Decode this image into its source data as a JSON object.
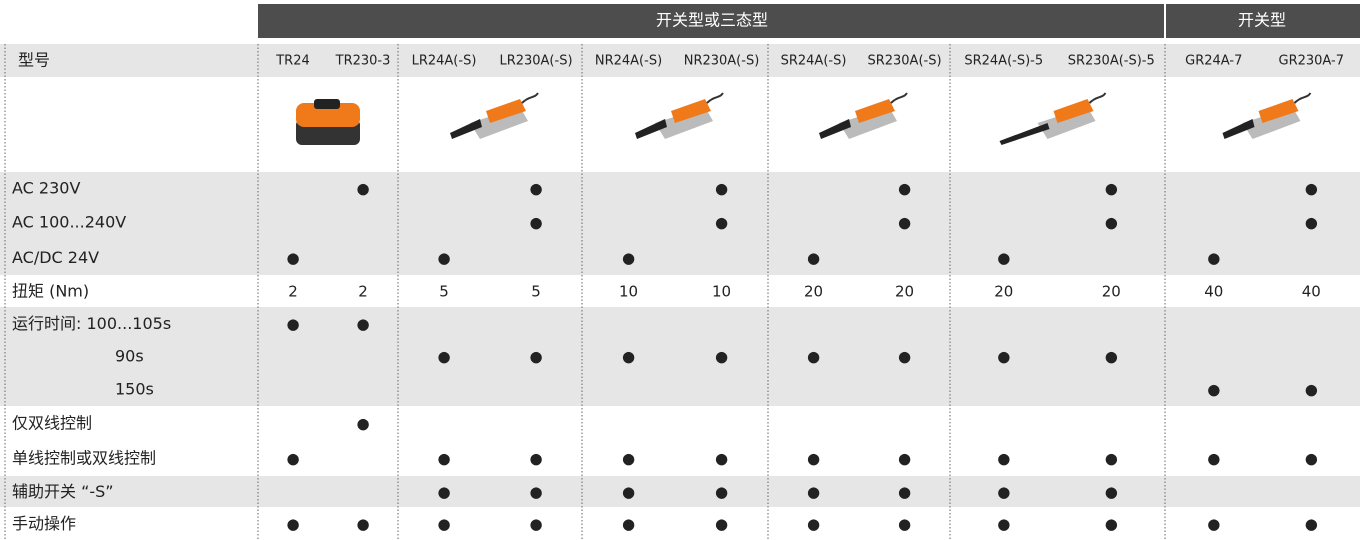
{
  "header": {
    "groups": [
      "开关型或三态型",
      "开关型"
    ]
  },
  "table": {
    "model_label": "型号",
    "models": [
      "TR24",
      "TR230-3",
      "LR24A(-S)",
      "LR230A(-S)",
      "NR24A(-S)",
      "NR230A(-S)",
      "SR24A(-S)",
      "SR230A(-S)",
      "SR24A(-S)-5",
      "SR230A(-S)-5",
      "GR24A-7",
      "GR230A-7"
    ],
    "bands": [
      {
        "rows": [
          {
            "label": "AC 230V",
            "cells": [
              null,
              "●",
              null,
              "●",
              null,
              "●",
              null,
              "●",
              null,
              "●",
              null,
              "●"
            ]
          },
          {
            "label": "AC 100...240V",
            "cells": [
              null,
              null,
              null,
              "●",
              null,
              "●",
              null,
              "●",
              null,
              "●",
              null,
              "●"
            ]
          },
          {
            "label": "AC/DC 24V",
            "cells": [
              "●",
              null,
              "●",
              null,
              "●",
              null,
              "●",
              null,
              "●",
              null,
              "●",
              null
            ]
          }
        ]
      },
      {
        "rows": [
          {
            "label": "扭矩 (Nm)",
            "cells": [
              2,
              2,
              5,
              5,
              10,
              10,
              20,
              20,
              20,
              20,
              40,
              40
            ]
          }
        ]
      },
      {
        "rows": [
          {
            "label": "运行时间: 100...105s",
            "cells": [
              "●",
              "●",
              null,
              null,
              null,
              null,
              null,
              null,
              null,
              null,
              null,
              null
            ]
          },
          {
            "label": "90s",
            "cells": [
              null,
              null,
              "●",
              "●",
              "●",
              "●",
              "●",
              "●",
              "●",
              "●",
              null,
              null
            ]
          },
          {
            "label": "150s",
            "cells": [
              null,
              null,
              null,
              null,
              null,
              null,
              null,
              null,
              null,
              null,
              "●",
              "●"
            ]
          }
        ]
      },
      {
        "rows": [
          {
            "label": "仅双线控制",
            "cells": [
              null,
              "●",
              null,
              null,
              null,
              null,
              null,
              null,
              null,
              null,
              null,
              null
            ]
          },
          {
            "label": "单线控制或双线控制",
            "cells": [
              "●",
              null,
              "●",
              "●",
              "●",
              "●",
              "●",
              "●",
              "●",
              "●",
              "●",
              "●"
            ]
          }
        ]
      },
      {
        "rows": [
          {
            "label": "辅助开关 “-S”",
            "cells": [
              null,
              null,
              "●",
              "●",
              "●",
              "●",
              "●",
              "●",
              "●",
              "●",
              null,
              null
            ]
          }
        ]
      },
      {
        "rows": [
          {
            "label": "手动操作",
            "cells": [
              "●",
              "●",
              "●",
              "●",
              "●",
              "●",
              "●",
              "●",
              "●",
              "●",
              "●",
              "●"
            ]
          }
        ]
      }
    ]
  }
}
